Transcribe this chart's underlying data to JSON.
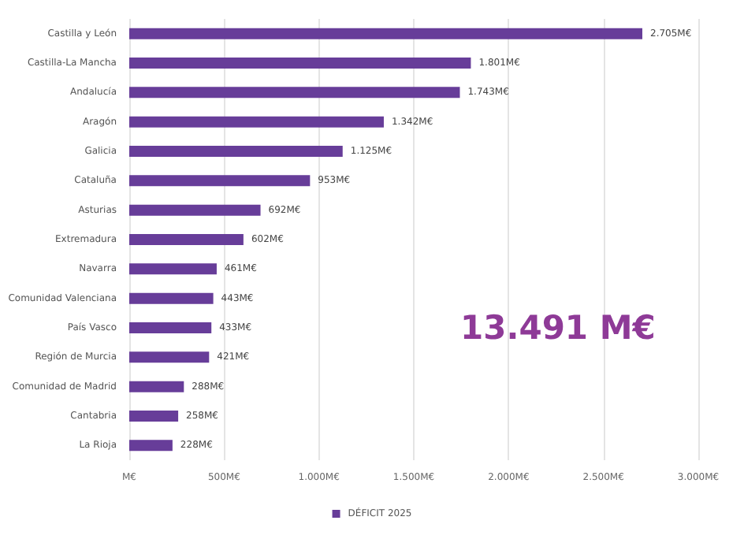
{
  "chart_data": {
    "type": "bar",
    "orientation": "horizontal",
    "categories": [
      "Castilla y León",
      "Castilla-La Mancha",
      "Andalucía",
      "Aragón",
      "Galicia",
      "Cataluña",
      "Asturias",
      "Extremadura",
      "Navarra",
      "Comunidad Valenciana",
      "País Vasco",
      "Región de Murcia",
      "Comunidad de Madrid",
      "Cantabria",
      "La Rioja"
    ],
    "series": [
      {
        "name": "DÉFICIT 2025",
        "color": "#673d99",
        "values": [
          2705,
          1801,
          1743,
          1342,
          1125,
          953,
          692,
          602,
          461,
          443,
          433,
          421,
          288,
          258,
          228
        ],
        "value_labels": [
          "2.705M€",
          "1.801M€",
          "1.743M€",
          "1.342M€",
          "1.125M€",
          "953M€",
          "692M€",
          "602M€",
          "461M€",
          "443M€",
          "433M€",
          "421M€",
          "288M€",
          "258M€",
          "228M€"
        ]
      }
    ],
    "xlim": [
      0,
      3000
    ],
    "xticks": [
      {
        "value": 0,
        "label": "M€"
      },
      {
        "value": 500,
        "label": "500M€"
      },
      {
        "value": 1000,
        "label": "1.000M€"
      },
      {
        "value": 1500,
        "label": "1.500M€"
      },
      {
        "value": 2000,
        "label": "2.000M€"
      },
      {
        "value": 2500,
        "label": "2.500M€"
      },
      {
        "value": 3000,
        "label": "3.000M€"
      }
    ],
    "grid": "x",
    "legend": "bottom",
    "annotations": [
      "13.491 M€"
    ]
  }
}
